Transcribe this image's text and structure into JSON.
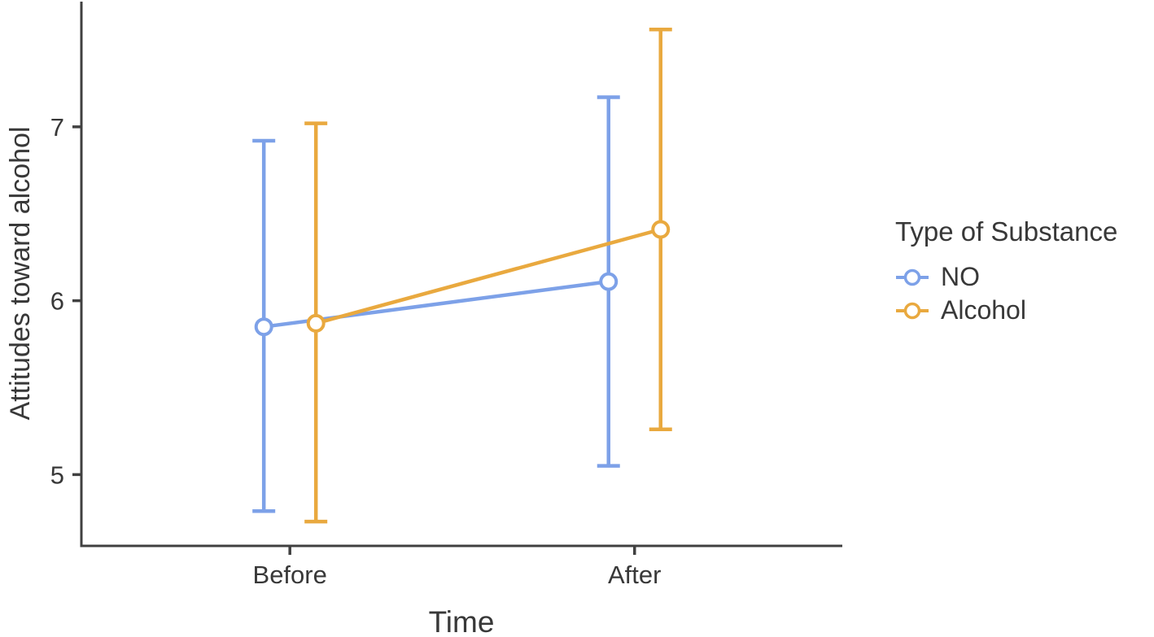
{
  "chart_data": {
    "type": "line",
    "title": "",
    "xlabel": "Time",
    "ylabel": "Attitudes toward alcohol",
    "categories": [
      "Before",
      "After"
    ],
    "yticks": [
      5,
      6,
      7
    ],
    "ylim": [
      4.59,
      7.72
    ],
    "grid": false,
    "error_bars": true,
    "legend": {
      "title": "Type of Substance",
      "position": "right"
    },
    "series": [
      {
        "name": "NO",
        "color": "#7da1e8",
        "means": [
          5.85,
          6.11
        ],
        "ci_lower": [
          4.79,
          5.05
        ],
        "ci_upper": [
          6.92,
          7.17
        ]
      },
      {
        "name": "Alcohol",
        "color": "#e9a93f",
        "means": [
          5.87,
          6.41
        ],
        "ci_lower": [
          4.73,
          5.26
        ],
        "ci_upper": [
          7.02,
          7.56
        ]
      }
    ]
  }
}
